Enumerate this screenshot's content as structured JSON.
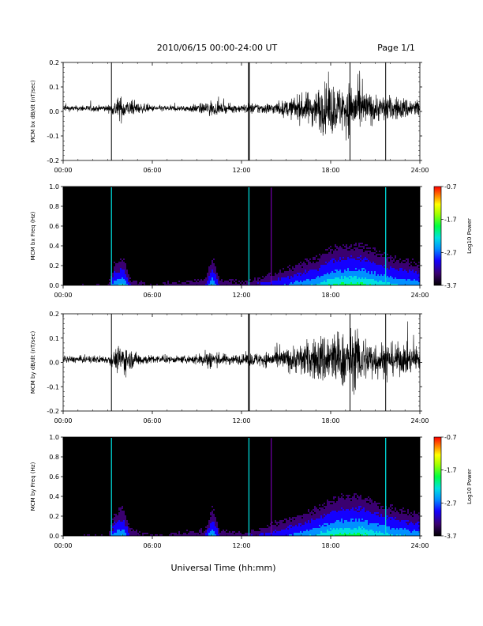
{
  "header": {
    "title": "2010/06/15  00:00-24:00 UT",
    "page": "Page 1/1"
  },
  "xlabel": "Universal Time (hh:mm)",
  "colors": {
    "background": "#ffffff",
    "axis": "#000000",
    "trace": "#000000",
    "spectrogram_bg": "#000000",
    "colormap": [
      "#000000",
      "#3a0070",
      "#1400ff",
      "#0090ff",
      "#00e0e0",
      "#00ff40",
      "#a0ff00",
      "#ffff00",
      "#ff8000",
      "#ff0000"
    ]
  },
  "chart_data": [
    {
      "type": "line",
      "name": "bx-waveform",
      "ylabel": "MCM bx dB/dt (nT/sec)",
      "xlim": [
        0,
        24
      ],
      "ylim": [
        -0.2,
        0.2
      ],
      "xticks": [
        "00:00",
        "06:00",
        "12:00",
        "18:00",
        "24:00"
      ],
      "xtick_values": [
        0,
        6,
        12,
        18,
        24
      ],
      "yticks": [
        "-0.2",
        "-0.1",
        "0.0",
        "0.1",
        "0.2"
      ],
      "ytick_values": [
        -0.2,
        -0.1,
        0.0,
        0.1,
        0.2
      ],
      "spikes_x": [
        3.25,
        12.5,
        19.3,
        21.7
      ],
      "envelope": {
        "x": [
          0,
          3,
          3.3,
          3.6,
          4.0,
          4.3,
          5.0,
          5.5,
          6,
          8,
          9.5,
          9.8,
          10.3,
          11,
          12,
          12.5,
          13,
          14,
          15,
          15.5,
          16,
          17,
          17.5,
          18,
          18.5,
          19,
          19.5,
          20,
          20.5,
          21,
          22,
          23,
          24
        ],
        "amp": [
          0.01,
          0.012,
          0.02,
          0.04,
          0.045,
          0.03,
          0.02,
          0.015,
          0.012,
          0.01,
          0.02,
          0.035,
          0.02,
          0.015,
          0.015,
          0.02,
          0.02,
          0.02,
          0.03,
          0.04,
          0.05,
          0.07,
          0.09,
          0.1,
          0.08,
          0.09,
          0.1,
          0.08,
          0.06,
          0.05,
          0.045,
          0.04,
          0.035
        ]
      }
    },
    {
      "type": "heatmap",
      "name": "bx-spectrogram",
      "ylabel": "MCM bx Freq (Hz)",
      "colorbar_label": "Log10 Power",
      "xlim": [
        0,
        24
      ],
      "ylim": [
        0,
        1.0
      ],
      "xticks": [
        "00:00",
        "06:00",
        "12:00",
        "18:00",
        "24:00"
      ],
      "xtick_values": [
        0,
        6,
        12,
        18,
        24
      ],
      "yticks": [
        "0.0",
        "0.2",
        "0.4",
        "0.6",
        "0.8",
        "1.0"
      ],
      "ytick_values": [
        0.0,
        0.2,
        0.4,
        0.6,
        0.8,
        1.0
      ],
      "colorbar_ticks": [
        "-0.7",
        "-1.7",
        "-2.7",
        "-3.7"
      ],
      "colorbar_values": [
        -0.7,
        -1.7,
        -2.7,
        -3.7
      ],
      "vertical_lines_x": [
        3.25,
        12.5,
        14.0,
        21.7
      ]
    },
    {
      "type": "line",
      "name": "by-waveform",
      "ylabel": "MCM by dB/dt (nT/sec)",
      "xlim": [
        0,
        24
      ],
      "ylim": [
        -0.2,
        0.2
      ],
      "xticks": [
        "00:00",
        "06:00",
        "12:00",
        "18:00",
        "24:00"
      ],
      "xtick_values": [
        0,
        6,
        12,
        18,
        24
      ],
      "yticks": [
        "-0.2",
        "-0.1",
        "0.0",
        "0.1",
        "0.2"
      ],
      "ytick_values": [
        -0.2,
        -0.1,
        0.0,
        0.1,
        0.2
      ],
      "spikes_x": [
        3.25,
        12.5,
        19.3,
        21.7
      ],
      "envelope": {
        "x": [
          0,
          3,
          3.3,
          3.7,
          4.1,
          4.5,
          5.0,
          5.5,
          6,
          8,
          9.5,
          9.9,
          10.3,
          11,
          12,
          12.5,
          13,
          14,
          15,
          15.5,
          16,
          17,
          17.5,
          18,
          18.5,
          19,
          19.5,
          20,
          20.5,
          21,
          22,
          23,
          24
        ],
        "amp": [
          0.012,
          0.015,
          0.025,
          0.05,
          0.06,
          0.035,
          0.025,
          0.02,
          0.015,
          0.012,
          0.025,
          0.045,
          0.025,
          0.02,
          0.018,
          0.025,
          0.025,
          0.03,
          0.04,
          0.05,
          0.06,
          0.08,
          0.1,
          0.11,
          0.1,
          0.1,
          0.11,
          0.1,
          0.08,
          0.07,
          0.06,
          0.055,
          0.05
        ]
      }
    },
    {
      "type": "heatmap",
      "name": "by-spectrogram",
      "ylabel": "MCM by Freq (Hz)",
      "colorbar_label": "Log10 Power",
      "xlim": [
        0,
        24
      ],
      "ylim": [
        0,
        1.0
      ],
      "xticks": [
        "00:00",
        "06:00",
        "12:00",
        "18:00",
        "24:00"
      ],
      "xtick_values": [
        0,
        6,
        12,
        18,
        24
      ],
      "yticks": [
        "0.0",
        "0.2",
        "0.4",
        "0.6",
        "0.8",
        "1.0"
      ],
      "ytick_values": [
        0.0,
        0.2,
        0.4,
        0.6,
        0.8,
        1.0
      ],
      "colorbar_ticks": [
        "-0.7",
        "-1.7",
        "-2.7",
        "-3.7"
      ],
      "colorbar_values": [
        -0.7,
        -1.7,
        -2.7,
        -3.7
      ],
      "vertical_lines_x": [
        3.25,
        12.5,
        14.0,
        21.7
      ]
    }
  ]
}
